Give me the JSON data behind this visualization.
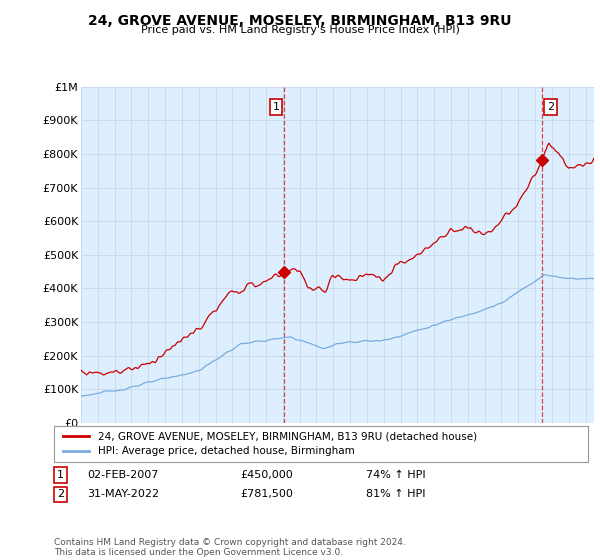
{
  "title1": "24, GROVE AVENUE, MOSELEY, BIRMINGHAM, B13 9RU",
  "title2": "Price paid vs. HM Land Registry's House Price Index (HPI)",
  "ylabel_ticks": [
    "£0",
    "£100K",
    "£200K",
    "£300K",
    "£400K",
    "£500K",
    "£600K",
    "£700K",
    "£800K",
    "£900K",
    "£1M"
  ],
  "ytick_values": [
    0,
    100000,
    200000,
    300000,
    400000,
    500000,
    600000,
    700000,
    800000,
    900000,
    1000000
  ],
  "ylim": [
    0,
    1000000
  ],
  "legend_label_red": "24, GROVE AVENUE, MOSELEY, BIRMINGHAM, B13 9RU (detached house)",
  "legend_label_blue": "HPI: Average price, detached house, Birmingham",
  "annotation1_date": "02-FEB-2007",
  "annotation1_price": "£450,000",
  "annotation1_hpi": "74% ↑ HPI",
  "annotation2_date": "31-MAY-2022",
  "annotation2_price": "£781,500",
  "annotation2_hpi": "81% ↑ HPI",
  "footer": "Contains HM Land Registry data © Crown copyright and database right 2024.\nThis data is licensed under the Open Government Licence v3.0.",
  "red_color": "#cc0000",
  "blue_color": "#7aabdc",
  "grid_color": "#c8d8e8",
  "background_color": "#ddeeff",
  "plot_bg_color": "#ddeeff",
  "outer_bg_color": "#ffffff",
  "point1_x": 2007.09,
  "point1_y": 450000,
  "point2_x": 2022.42,
  "point2_y": 781500,
  "vline1_x": 2007.09,
  "vline2_x": 2022.42,
  "xmin": 1995.0,
  "xmax": 2025.5
}
